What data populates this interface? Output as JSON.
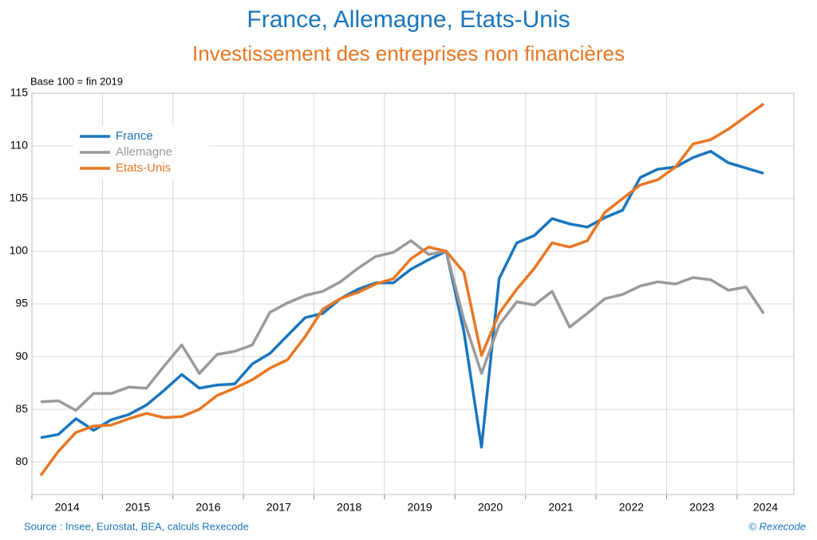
{
  "chart_data": {
    "type": "line",
    "title": "France, Allemagne, Etats-Unis",
    "subtitle": "Investissement des entreprises non financières",
    "y_label": "Base 100 = fin 2019",
    "source": "Source : Insee, Eurostat, BEA, calculs Rexecode",
    "credit": "© Rexecode",
    "categories": [
      "2014",
      null,
      null,
      null,
      "2015",
      null,
      null,
      null,
      "2016",
      null,
      null,
      null,
      "2017",
      null,
      null,
      null,
      "2018",
      null,
      null,
      null,
      "2019",
      null,
      null,
      null,
      "2020",
      null,
      null,
      null,
      "2021",
      null,
      null,
      null,
      "2022",
      null,
      null,
      null,
      "2023",
      null,
      null,
      null,
      "2024",
      null
    ],
    "series": [
      {
        "name": "France",
        "color": "#1a75bc",
        "values": [
          82.3,
          82.6,
          84.1,
          83.0,
          84.0,
          84.5,
          85.4,
          86.8,
          88.3,
          87.0,
          87.3,
          87.4,
          89.3,
          90.3,
          92.0,
          93.7,
          94.1,
          95.5,
          96.4,
          97.0,
          97.0,
          98.3,
          99.2,
          100.0,
          92.4,
          81.4,
          97.4,
          100.8,
          101.5,
          103.1,
          102.6,
          102.3,
          103.2,
          103.9,
          107.0,
          107.8,
          108.0,
          108.9,
          109.5,
          108.4,
          107.9,
          107.4
        ]
      },
      {
        "name": "Allemagne",
        "color": "#9a9a9a",
        "values": [
          85.7,
          85.8,
          84.9,
          86.5,
          86.5,
          87.1,
          87.0,
          89.1,
          91.1,
          88.4,
          90.2,
          90.5,
          91.1,
          94.2,
          95.1,
          95.8,
          96.2,
          97.1,
          98.4,
          99.5,
          99.9,
          101.0,
          99.7,
          100.0,
          93.5,
          88.4,
          93.0,
          95.2,
          94.9,
          96.2,
          92.8,
          94.1,
          95.5,
          95.9,
          96.7,
          97.1,
          96.9,
          97.5,
          97.3,
          96.3,
          96.6,
          94.1
        ]
      },
      {
        "name": "Etats-Unis",
        "color": "#e87722",
        "values": [
          78.7,
          81.0,
          82.8,
          83.4,
          83.5,
          84.1,
          84.6,
          84.2,
          84.3,
          85.0,
          86.3,
          87.0,
          87.8,
          88.9,
          89.7,
          91.9,
          94.5,
          95.5,
          96.1,
          96.9,
          97.4,
          99.3,
          100.4,
          100.0,
          98.0,
          90.1,
          94.1,
          96.4,
          98.4,
          100.8,
          100.4,
          101.0,
          103.7,
          105.0,
          106.3,
          106.8,
          108.0,
          110.2,
          110.6,
          111.6,
          112.8,
          114.0
        ]
      }
    ],
    "ylim": [
      76.9,
      115
    ],
    "yticks": [
      80,
      85,
      90,
      95,
      100,
      105,
      110,
      115
    ],
    "grid": true,
    "legend": "top-left"
  }
}
